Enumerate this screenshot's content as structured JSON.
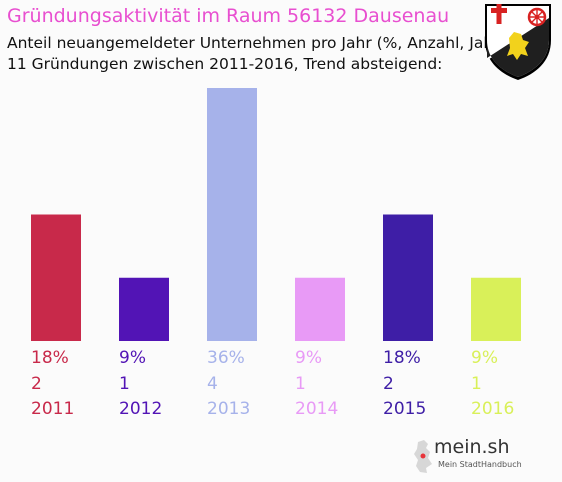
{
  "title": "Gründungsaktivität im Raum 56132 Dausenau",
  "subtitle_1": "Anteil neuangemeldeter Unternehmen pro Jahr (%, Anzahl, Jahr)",
  "subtitle_2": "11 Gründungen zwischen 2011-2016, Trend absteigend:",
  "logo": {
    "text": "mein.sh",
    "tagline": "Mein StadtHandbuch"
  },
  "chart_data": {
    "type": "bar",
    "categories": [
      "2011",
      "2012",
      "2013",
      "2014",
      "2015",
      "2016"
    ],
    "values": [
      2,
      1,
      4,
      1,
      2,
      1
    ],
    "percent_labels": [
      "18%",
      "9%",
      "36%",
      "9%",
      "18%",
      "9%"
    ],
    "colors": [
      "#c8294a",
      "#5214b5",
      "#a6b2ea",
      "#e89af6",
      "#3e1ea6",
      "#d9f059"
    ],
    "ylim": [
      0,
      4
    ]
  }
}
